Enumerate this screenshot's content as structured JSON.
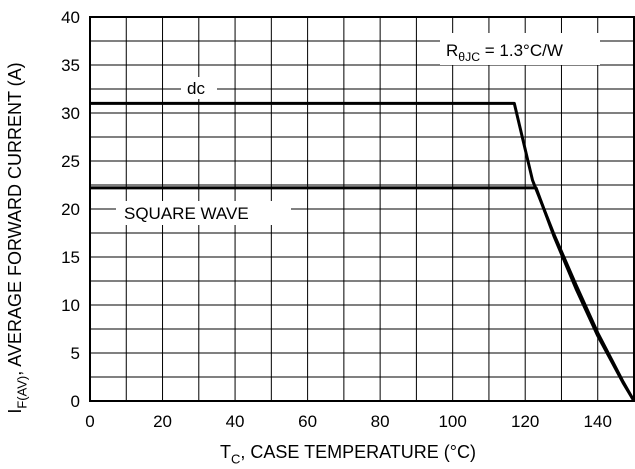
{
  "chart_data": {
    "type": "line",
    "title": "",
    "xlabel": {
      "main": "T",
      "sub": "C",
      "rest": ", CASE TEMPERATURE (°C)"
    },
    "ylabel": {
      "main": "I",
      "sub": "F(AV)",
      "rest": ", AVERAGE FORWARD CURRENT (A)"
    },
    "xlim": [
      0,
      150
    ],
    "ylim": [
      0,
      40
    ],
    "x_ticks": [
      0,
      20,
      40,
      60,
      80,
      100,
      120,
      140
    ],
    "y_ticks": [
      0,
      5,
      10,
      15,
      20,
      25,
      30,
      35,
      40
    ],
    "grid": {
      "x_step": 10,
      "y_step": 2.5
    },
    "annotation": {
      "main": "R",
      "sub": "θJC",
      "rest": " = 1.3°C/W"
    },
    "series": [
      {
        "name": "dc",
        "points": [
          [
            0,
            31
          ],
          [
            117,
            31
          ],
          [
            122,
            23
          ],
          [
            128,
            17.3
          ],
          [
            134,
            12.1
          ],
          [
            140,
            7.1
          ],
          [
            144,
            4.2
          ],
          [
            147,
            2.0
          ],
          [
            150,
            0
          ]
        ]
      },
      {
        "name": "SQUARE WAVE",
        "points": [
          [
            0,
            22.2
          ],
          [
            123,
            22.2
          ],
          [
            128,
            17.1
          ],
          [
            134,
            11.7
          ],
          [
            140,
            6.8
          ],
          [
            144,
            4.0
          ],
          [
            147,
            1.9
          ],
          [
            150,
            0
          ]
        ]
      }
    ],
    "colors": {
      "line": "#000000",
      "grid": "#000000"
    }
  }
}
